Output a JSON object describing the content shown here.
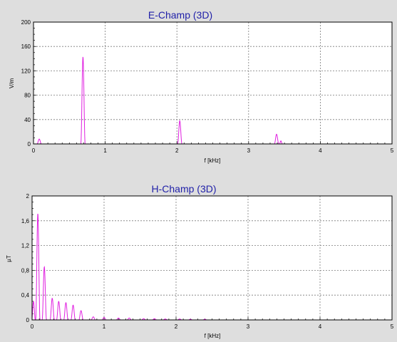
{
  "colors": {
    "background": "#dedede",
    "title": "#1f1fa8",
    "series": "#e020e0",
    "grid": "#7a7a7a"
  },
  "chart_data": [
    {
      "type": "line",
      "title": "E-Champ (3D)",
      "xlabel": "f [kHz]",
      "ylabel": "V/m",
      "xlim": [
        0,
        5
      ],
      "ylim": [
        0,
        200
      ],
      "xticks": [
        "0",
        "1",
        "2",
        "3",
        "4",
        "5"
      ],
      "yticks": [
        "0",
        "40",
        "80",
        "120",
        "160",
        "200"
      ],
      "grid": true,
      "series": [
        {
          "peaks": [
            {
              "x": 0.08,
              "y": 8,
              "width": 0.03
            },
            {
              "x": 0.69,
              "y": 143,
              "width": 0.03
            },
            {
              "x": 2.04,
              "y": 38,
              "width": 0.03
            },
            {
              "x": 3.39,
              "y": 16,
              "width": 0.03
            },
            {
              "x": 3.45,
              "y": 5,
              "width": 0.02
            }
          ]
        }
      ]
    },
    {
      "type": "line",
      "title": "H-Champ (3D)",
      "xlabel": "f [kHz]",
      "ylabel": "µT",
      "xlim": [
        0,
        5
      ],
      "ylim": [
        0,
        2
      ],
      "xticks": [
        "0",
        "1",
        "2",
        "3",
        "4",
        "5"
      ],
      "yticks": [
        "0",
        "0,4",
        "0,8",
        "1,2",
        "1,6",
        "2"
      ],
      "grid": true,
      "series": [
        {
          "peaks": [
            {
              "x": 0.02,
              "y": 0.3,
              "width": 0.025
            },
            {
              "x": 0.08,
              "y": 1.72,
              "width": 0.03
            },
            {
              "x": 0.17,
              "y": 0.86,
              "width": 0.03
            },
            {
              "x": 0.28,
              "y": 0.35,
              "width": 0.03
            },
            {
              "x": 0.37,
              "y": 0.3,
              "width": 0.03
            },
            {
              "x": 0.47,
              "y": 0.28,
              "width": 0.03
            },
            {
              "x": 0.57,
              "y": 0.24,
              "width": 0.03
            },
            {
              "x": 0.68,
              "y": 0.15,
              "width": 0.03
            },
            {
              "x": 0.85,
              "y": 0.05,
              "width": 0.03
            },
            {
              "x": 1.0,
              "y": 0.04,
              "width": 0.03
            },
            {
              "x": 1.2,
              "y": 0.03,
              "width": 0.03
            },
            {
              "x": 1.35,
              "y": 0.03,
              "width": 0.03
            },
            {
              "x": 1.55,
              "y": 0.02,
              "width": 0.03
            },
            {
              "x": 1.7,
              "y": 0.02,
              "width": 0.03
            },
            {
              "x": 1.85,
              "y": 0.015,
              "width": 0.03
            },
            {
              "x": 2.05,
              "y": 0.015,
              "width": 0.03
            },
            {
              "x": 2.2,
              "y": 0.01,
              "width": 0.03
            },
            {
              "x": 2.4,
              "y": 0.01,
              "width": 0.03
            }
          ]
        }
      ]
    }
  ]
}
